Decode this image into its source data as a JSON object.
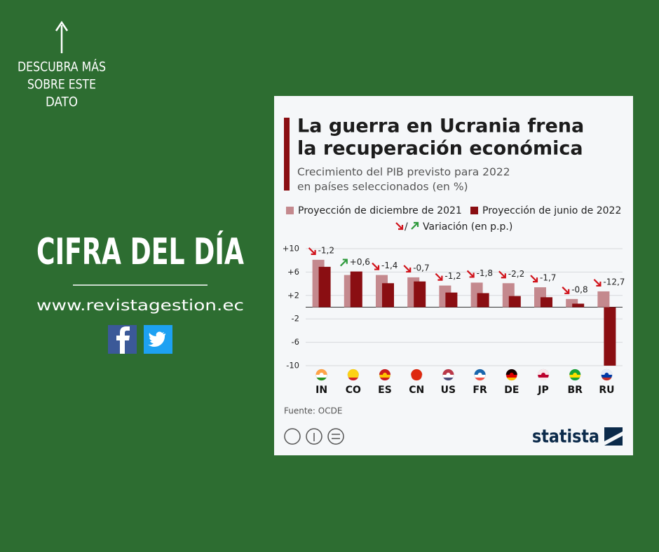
{
  "sidebar": {
    "cta": [
      "DESCUBRA MÁS",
      "SOBRE ESTE",
      "DATO"
    ],
    "headline": "CIFRA DEL DÍA",
    "website": "www.revistagestion.ec"
  },
  "chart_data": {
    "type": "bar",
    "title": [
      "La guerra en Ucrania frena",
      "la recuperación económica"
    ],
    "subtitle": [
      "Crecimiento del PIB previsto para 2022",
      "en países seleccionados (en %)"
    ],
    "categories": [
      "IN",
      "CO",
      "ES",
      "CN",
      "US",
      "FR",
      "DE",
      "JP",
      "BR",
      "RU"
    ],
    "series": [
      {
        "name": "Proyección de diciembre de 2021",
        "color": "#c4898e",
        "values": [
          8.1,
          5.5,
          5.5,
          5.1,
          3.7,
          4.2,
          4.1,
          3.4,
          1.4,
          2.7
        ]
      },
      {
        "name": "Proyección de junio de 2022",
        "color": "#8a0e12",
        "values": [
          6.9,
          6.1,
          4.1,
          4.4,
          2.5,
          2.4,
          1.9,
          1.7,
          0.6,
          -10.0
        ]
      }
    ],
    "variation": {
      "name": "Variación (en p.p.)",
      "values": [
        -1.2,
        0.6,
        -1.4,
        -0.7,
        -1.2,
        -1.8,
        -2.2,
        -1.7,
        -0.8,
        -12.7
      ],
      "value_labels": [
        "-1,2",
        "+0,6",
        "-1,4",
        "-0,7",
        "-1,2",
        "-1,8",
        "-2,2",
        "-1,7",
        "-0,8",
        "-12,7"
      ],
      "up_color": "#2e9a3c",
      "down_color": "#d0121a"
    },
    "ylim": [
      -10,
      10
    ],
    "yticks": [
      {
        "value": 10,
        "label": "+10"
      },
      {
        "value": 6,
        "label": "+6"
      },
      {
        "value": 2,
        "label": "+2"
      },
      {
        "value": -2,
        "label": "-2"
      },
      {
        "value": -6,
        "label": "-6"
      },
      {
        "value": -10,
        "label": "-10"
      }
    ],
    "grid": true,
    "source": "Fuente: OCDE",
    "brand": "statista"
  }
}
